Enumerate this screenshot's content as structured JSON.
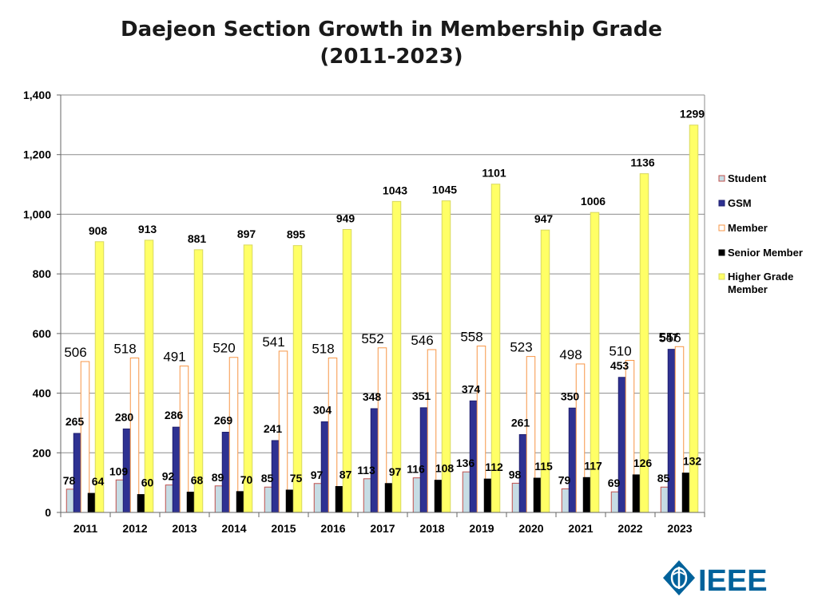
{
  "chart_data": {
    "type": "bar",
    "title": "Daejeon Section Growth in Membership Grade",
    "subtitle": "(2011-2023)",
    "xlabel": "",
    "ylabel": "",
    "ylim": [
      0,
      1400
    ],
    "yticks": [
      "0",
      "200",
      "400",
      "600",
      "800",
      "1,000",
      "1,200",
      "1,400"
    ],
    "ytick_values": [
      0,
      200,
      400,
      600,
      800,
      1000,
      1200,
      1400
    ],
    "grid": true,
    "legend_position": "right",
    "categories": [
      "2011",
      "2012",
      "2013",
      "2014",
      "2015",
      "2016",
      "2017",
      "2018",
      "2019",
      "2020",
      "2021",
      "2022",
      "2023"
    ],
    "series": [
      {
        "name": "Student",
        "fill": "#C6DCE4",
        "stroke": "#C0504D",
        "values": [
          78,
          109,
          92,
          89,
          85,
          97,
          113,
          116,
          136,
          98,
          79,
          69,
          85
        ]
      },
      {
        "name": "GSM",
        "fill": "#2E3192",
        "stroke": "#1E1E6E",
        "values": [
          265,
          280,
          286,
          269,
          241,
          304,
          348,
          351,
          374,
          261,
          350,
          453,
          547
        ]
      },
      {
        "name": "Member",
        "fill": "#FFFFFF",
        "stroke": "#F79646",
        "values": [
          506,
          518,
          491,
          520,
          541,
          518,
          552,
          546,
          558,
          523,
          498,
          510,
          556
        ]
      },
      {
        "name": "Senior Member",
        "fill": "#000000",
        "stroke": "#000000",
        "values": [
          64,
          60,
          68,
          70,
          75,
          87,
          97,
          108,
          112,
          115,
          117,
          126,
          132
        ]
      },
      {
        "name": "Higher Grade Member",
        "fill": "#FFFF66",
        "stroke": "#D8D860",
        "values": [
          908,
          913,
          881,
          897,
          895,
          949,
          1043,
          1045,
          1101,
          947,
          1006,
          1136,
          1299
        ]
      }
    ]
  },
  "logo": {
    "text": "IEEE"
  }
}
